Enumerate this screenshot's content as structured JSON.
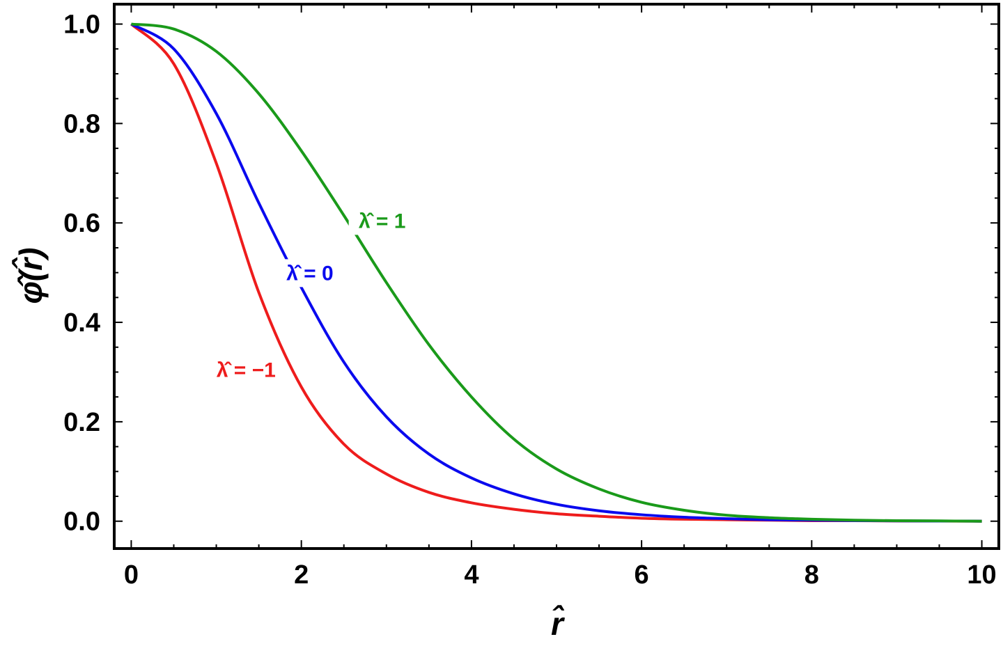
{
  "chart_data": {
    "type": "line",
    "xlabel": "r̂",
    "ylabel": "φ̂(r̂)",
    "xlim": [
      -0.2,
      10.2
    ],
    "ylim": [
      -0.055,
      1.04
    ],
    "x_ticks": [
      0,
      2,
      4,
      6,
      8,
      10
    ],
    "y_ticks": [
      0.0,
      0.2,
      0.4,
      0.6,
      0.8,
      1.0
    ],
    "x_tick_labels": [
      "0",
      "2",
      "4",
      "6",
      "8",
      "10"
    ],
    "y_tick_labels": [
      "0.0",
      "0.2",
      "0.4",
      "0.6",
      "0.8",
      "1.0"
    ],
    "grid": false,
    "frame": true,
    "x": [
      0,
      0.5,
      1,
      1.5,
      2,
      2.5,
      3,
      3.5,
      4,
      4.5,
      5,
      5.5,
      6,
      6.5,
      7,
      7.5,
      8,
      8.5,
      9,
      9.5,
      10
    ],
    "series": [
      {
        "name": "λ̂ = −1",
        "color": "#ee1c1c",
        "values": [
          1.0,
          0.92,
          0.72,
          0.46,
          0.27,
          0.155,
          0.095,
          0.058,
          0.037,
          0.024,
          0.015,
          0.01,
          0.006,
          0.004,
          0.003,
          0.002,
          0.001,
          0.001,
          0.0005,
          0.0003,
          0.0
        ]
      },
      {
        "name": "λ̂ = 0",
        "color": "#0a0aee",
        "values": [
          1.0,
          0.95,
          0.82,
          0.64,
          0.47,
          0.32,
          0.21,
          0.135,
          0.087,
          0.055,
          0.034,
          0.021,
          0.013,
          0.008,
          0.005,
          0.003,
          0.002,
          0.0012,
          0.0007,
          0.0004,
          0.0
        ]
      },
      {
        "name": "λ̂ = 1",
        "color": "#1a9a1a",
        "values": [
          1.0,
          0.99,
          0.945,
          0.86,
          0.745,
          0.615,
          0.48,
          0.355,
          0.25,
          0.165,
          0.105,
          0.065,
          0.038,
          0.022,
          0.012,
          0.007,
          0.004,
          0.002,
          0.001,
          0.0006,
          0.0
        ]
      }
    ],
    "annotations": [
      {
        "text": "λ̂ = −1",
        "series": 0,
        "x": 1.35,
        "y": 0.29
      },
      {
        "text": "λ̂ = 0",
        "series": 1,
        "x": 2.1,
        "y": 0.485
      },
      {
        "text": "λ̂ = 1",
        "series": 2,
        "x": 2.95,
        "y": 0.59
      }
    ]
  }
}
